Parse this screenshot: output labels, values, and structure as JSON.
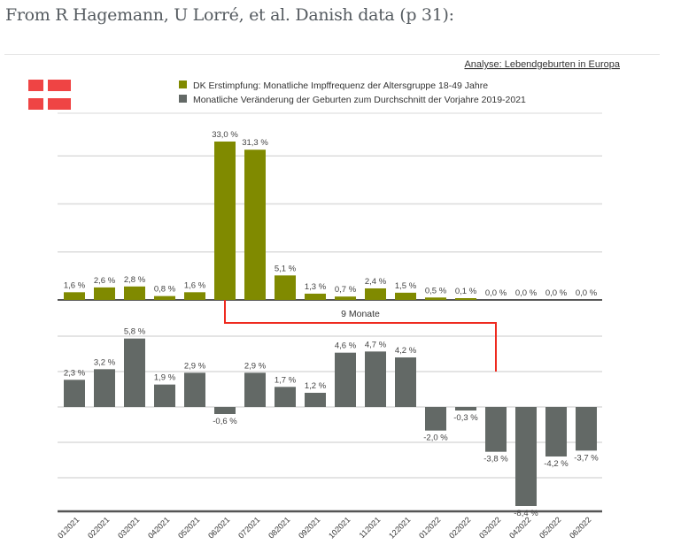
{
  "caption": "From R Hagemann, U Lorré, et al. Danish data (p 31):",
  "colors": {
    "vaccination": "#808a00",
    "births": "#636966",
    "flag": "#ef4444",
    "annotation": "#ee2a1f",
    "grid": "#dcdcdc",
    "axis": "#555555"
  },
  "chart_data": [
    {
      "type": "bar",
      "title": "Analyse: Lebendgeburten in Europa",
      "categories": [
        "012021",
        "022021",
        "032021",
        "042021",
        "052021",
        "062021",
        "072021",
        "082021",
        "092021",
        "102021",
        "112021",
        "122021",
        "012022",
        "022022",
        "032022",
        "042022",
        "052022",
        "062022"
      ],
      "series": [
        {
          "name": "DK Erstimpfung: Monatliche Impffrequenz der Altersgruppe 18-49 Jahre",
          "values": [
            1.6,
            2.6,
            2.8,
            0.8,
            1.6,
            33.0,
            31.3,
            5.1,
            1.3,
            0.7,
            2.4,
            1.5,
            0.5,
            0.1,
            0.0,
            0.0,
            0.0,
            0.0
          ],
          "labels": [
            "1,6 %",
            "2,6 %",
            "2,8 %",
            "0,8 %",
            "1,6 %",
            "33,0 %",
            "31,3 %",
            "5,1 %",
            "1,3 %",
            "0,7 %",
            "2,4 %",
            "1,5 %",
            "0,5 %",
            "0,1 %",
            "0,0 %",
            "0,0 %",
            "0,0 %",
            "0,0 %"
          ],
          "ylim": [
            0,
            33
          ],
          "gridlines": [
            10,
            20,
            30
          ]
        },
        {
          "name": "Monatliche Veränderung der Geburten zum Durchschnitt der Vorjahre 2019-2021",
          "values": [
            2.3,
            3.2,
            5.8,
            1.9,
            2.9,
            -0.6,
            2.9,
            1.7,
            1.2,
            4.6,
            4.7,
            4.2,
            -2.0,
            -0.3,
            -3.8,
            -8.4,
            -4.2,
            -3.7
          ],
          "labels": [
            "2,3 %",
            "3,2 %",
            "5,8 %",
            "1,9 %",
            "2,9 %",
            "-0,6 %",
            "2,9 %",
            "1,7 %",
            "1,2 %",
            "4,6 %",
            "4,7 %",
            "4,2 %",
            "-2,0 %",
            "-0,3 %",
            "-3,8 %",
            "-8,4 %",
            "-4,2 %",
            "-3,7 %"
          ],
          "ylim": [
            -9,
            6
          ],
          "gridlines": [
            6,
            3,
            -3,
            -6
          ]
        }
      ],
      "annotation": {
        "text": "9 Monate",
        "from_category": "062021",
        "to_category": "032022"
      },
      "legend": "top-center",
      "grid": true
    }
  ]
}
